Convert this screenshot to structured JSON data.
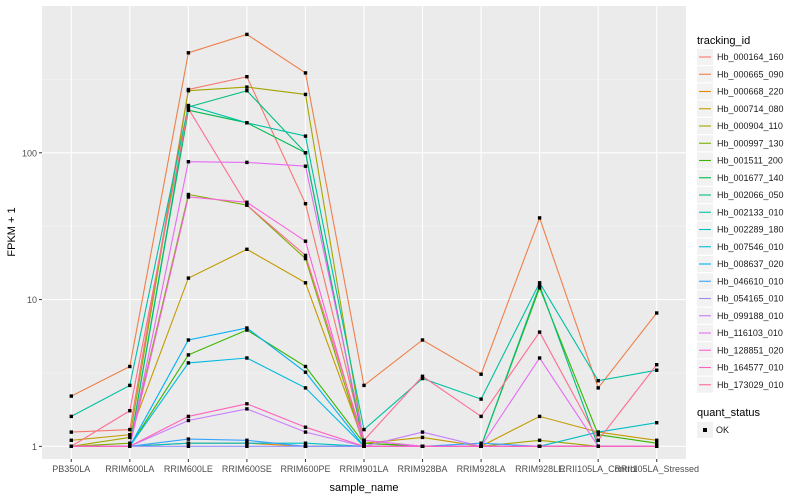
{
  "chart_data": {
    "type": "line",
    "xlabel": "sample_name",
    "ylabel": "FPKM + 1",
    "y_scale": "log10",
    "ylim": [
      0.82,
      1000
    ],
    "yticks": [
      1,
      10,
      100
    ],
    "ytick_labels": [
      "1",
      "10",
      "100"
    ],
    "grid": true,
    "categories": [
      "PB350LA",
      "RRIM600LA",
      "RRIM600LE",
      "RRIM600SE",
      "RRIM600PE",
      "RRIM901LA",
      "RRIM928BA",
      "RRIM928LA",
      "RRIM928LE",
      "RRII105LA_Control",
      "RRII105LA_Stressed"
    ],
    "legend": {
      "position": "right",
      "title": "tracking_id",
      "quant_title": "quant_status",
      "quant_label": "OK"
    },
    "series": [
      {
        "name": "Hb_000164_160",
        "color": "#F8766D",
        "values": [
          1.25,
          1.3,
          270,
          330,
          45,
          1.1,
          1.0,
          1.0,
          1.0,
          1.0,
          1.0
        ]
      },
      {
        "name": "Hb_000665_090",
        "color": "#EF7F49",
        "values": [
          2.2,
          3.5,
          480,
          640,
          350,
          2.6,
          5.3,
          3.1,
          36,
          2.5,
          8.1
        ]
      },
      {
        "name": "Hb_000668_220",
        "color": "#E38900",
        "values": [
          1.0,
          1.0,
          1.05,
          1.05,
          1.0,
          1.0,
          1.0,
          1.0,
          1.0,
          1.0,
          1.0
        ]
      },
      {
        "name": "Hb_000714_080",
        "color": "#C49A00",
        "values": [
          1.1,
          1.2,
          14,
          22,
          13,
          1.05,
          1.15,
          1.0,
          1.6,
          1.25,
          1.1
        ]
      },
      {
        "name": "Hb_000904_110",
        "color": "#A3A500",
        "values": [
          1.0,
          1.15,
          265,
          280,
          250,
          1.05,
          1.0,
          1.0,
          1.1,
          1.0,
          1.0
        ]
      },
      {
        "name": "Hb_000997_130",
        "color": "#7CAE00",
        "values": [
          1.0,
          1.05,
          52,
          44,
          19,
          1.0,
          1.0,
          1.0,
          1.0,
          1.0,
          1.0
        ]
      },
      {
        "name": "Hb_001511_200",
        "color": "#39B600",
        "values": [
          1.0,
          1.0,
          4.2,
          6.2,
          3.5,
          1.05,
          1.0,
          1.0,
          12,
          1.2,
          1.05
        ]
      },
      {
        "name": "Hb_001677_140",
        "color": "#00BB4E",
        "values": [
          1.0,
          1.0,
          195,
          160,
          100,
          1.0,
          1.0,
          1.0,
          1.0,
          1.0,
          1.0
        ]
      },
      {
        "name": "Hb_002066_050",
        "color": "#00BF7D",
        "values": [
          1.0,
          1.0,
          205,
          265,
          100,
          1.0,
          1.0,
          1.0,
          12.5,
          1.0,
          1.0
        ]
      },
      {
        "name": "Hb_002133_010",
        "color": "#00C1A3",
        "values": [
          1.6,
          2.6,
          210,
          160,
          130,
          1.3,
          2.9,
          2.1,
          13.0,
          2.8,
          3.3
        ]
      },
      {
        "name": "Hb_002289_180",
        "color": "#00BFC4",
        "values": [
          1.0,
          1.0,
          1.05,
          1.05,
          1.05,
          1.0,
          1.0,
          1.0,
          1.0,
          1.25,
          1.45
        ]
      },
      {
        "name": "Hb_007546_010",
        "color": "#00BAE0",
        "values": [
          1.0,
          1.0,
          3.7,
          4.0,
          2.5,
          1.0,
          1.0,
          1.0,
          1.0,
          1.0,
          1.0
        ]
      },
      {
        "name": "Hb_008637_020",
        "color": "#00B0F6",
        "values": [
          1.0,
          1.0,
          5.3,
          6.4,
          3.2,
          1.0,
          1.0,
          1.0,
          1.0,
          1.0,
          1.0
        ]
      },
      {
        "name": "Hb_046610_010",
        "color": "#35A2FF",
        "values": [
          1.0,
          1.0,
          1.12,
          1.1,
          1.0,
          1.0,
          1.0,
          1.05,
          1.0,
          1.0,
          1.0
        ]
      },
      {
        "name": "Hb_054165_010",
        "color": "#9590FF",
        "values": [
          1.0,
          1.0,
          1.0,
          1.0,
          1.0,
          1.0,
          1.0,
          1.0,
          1.0,
          1.0,
          1.0
        ]
      },
      {
        "name": "Hb_099188_010",
        "color": "#C77CFF",
        "values": [
          1.0,
          1.0,
          1.5,
          1.8,
          1.25,
          1.0,
          1.25,
          1.0,
          1.0,
          1.0,
          1.0
        ]
      },
      {
        "name": "Hb_116103_010",
        "color": "#E76BF3",
        "values": [
          1.0,
          1.0,
          87,
          86,
          81,
          1.1,
          1.0,
          1.0,
          4.0,
          1.0,
          1.0
        ]
      },
      {
        "name": "Hb_128851_020",
        "color": "#FA62DB",
        "values": [
          1.0,
          1.0,
          50,
          46,
          25,
          1.0,
          1.0,
          1.0,
          1.0,
          1.0,
          1.0
        ]
      },
      {
        "name": "Hb_164577_010",
        "color": "#FF62BC",
        "values": [
          1.0,
          1.0,
          1.6,
          1.95,
          1.35,
          1.0,
          1.0,
          1.0,
          1.0,
          1.0,
          1.0
        ]
      },
      {
        "name": "Hb_173029_010",
        "color": "#FF6C91",
        "values": [
          1.0,
          1.75,
          200,
          44,
          20,
          1.1,
          3.0,
          1.6,
          6.0,
          1.1,
          3.6
        ]
      }
    ]
  }
}
